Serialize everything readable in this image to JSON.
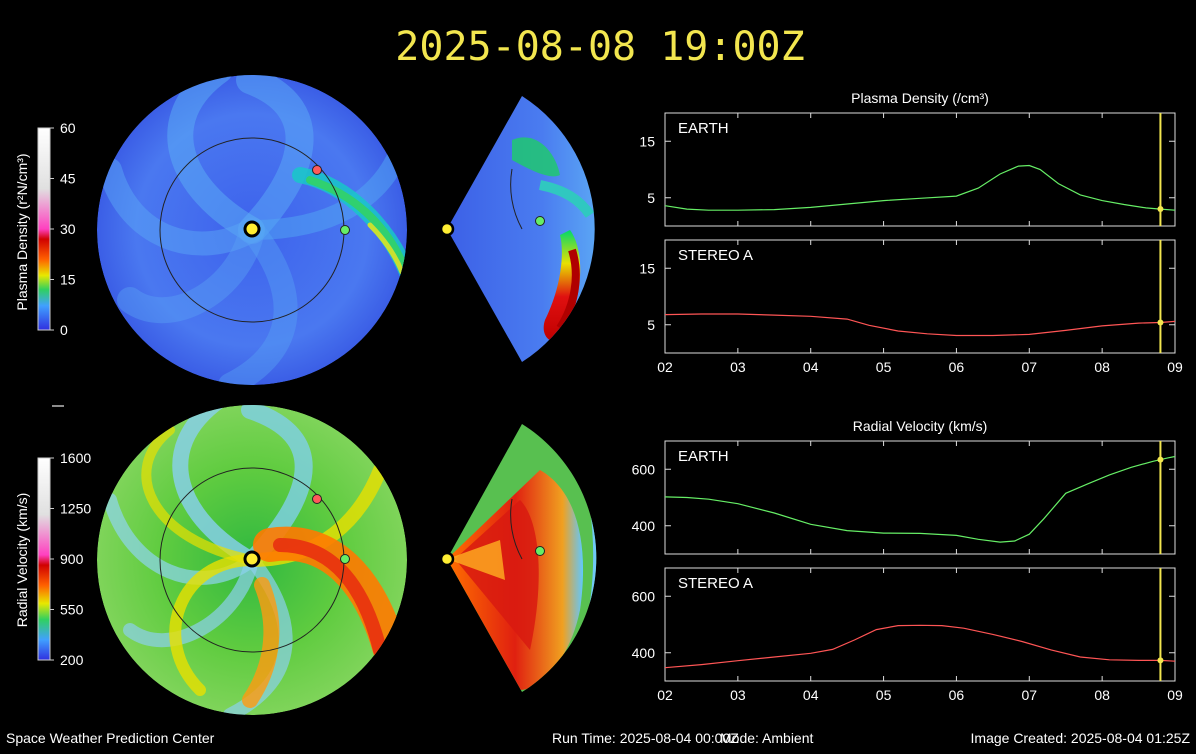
{
  "header": {
    "timestamp": "2025-08-08 19:00Z"
  },
  "colors": {
    "background": "#000000",
    "title": "#f2e64f",
    "earth": "#66ee66",
    "stereo_a": "#ff5555",
    "time_marker": "#f2e64f",
    "sun": "#ffee33"
  },
  "density_colorbar": {
    "label": "Plasma Density (r²N/cm³)",
    "ticks": [
      "0",
      "15",
      "30",
      "45",
      "60"
    ],
    "range": [
      0,
      60
    ]
  },
  "velocity_colorbar": {
    "label": "Radial Velocity (km/s)",
    "ticks": [
      "200",
      "550",
      "900",
      "1250",
      "1600"
    ],
    "range": [
      200,
      1600
    ]
  },
  "chart_data": [
    {
      "type": "line",
      "title": "Plasma Density (/cm³)",
      "panel": "EARTH",
      "x_ticks": [
        "02",
        "03",
        "04",
        "05",
        "06",
        "07",
        "08",
        "09"
      ],
      "xlim": [
        2,
        9
      ],
      "ylim": [
        0,
        20
      ],
      "y_ticks": [
        5,
        15
      ],
      "marker_x": 8.8,
      "series": [
        {
          "x": [
            2.0,
            2.3,
            2.6,
            3.0,
            3.5,
            4.0,
            4.5,
            5.0,
            5.5,
            6.0,
            6.3,
            6.6,
            6.85,
            7.0,
            7.15,
            7.4,
            7.7,
            8.0,
            8.3,
            8.6,
            8.8,
            9.0
          ],
          "values": [
            3.6,
            3.0,
            2.8,
            2.8,
            2.9,
            3.3,
            3.9,
            4.5,
            4.9,
            5.3,
            6.7,
            9.2,
            10.6,
            10.7,
            10.0,
            7.5,
            5.5,
            4.5,
            3.8,
            3.2,
            3.0,
            2.8
          ]
        }
      ]
    },
    {
      "type": "line",
      "panel": "STEREO A",
      "x_ticks": [
        "02",
        "03",
        "04",
        "05",
        "06",
        "07",
        "08",
        "09"
      ],
      "xlim": [
        2,
        9
      ],
      "ylim": [
        0,
        20
      ],
      "y_ticks": [
        5,
        15
      ],
      "marker_x": 8.8,
      "series": [
        {
          "x": [
            2.0,
            2.5,
            3.0,
            3.5,
            4.0,
            4.5,
            4.8,
            5.2,
            5.6,
            6.0,
            6.5,
            7.0,
            7.5,
            8.0,
            8.5,
            8.8,
            9.0
          ],
          "values": [
            6.8,
            6.9,
            6.9,
            6.7,
            6.5,
            6.0,
            4.9,
            3.9,
            3.4,
            3.1,
            3.1,
            3.3,
            4.0,
            4.8,
            5.3,
            5.4,
            5.6
          ]
        }
      ]
    },
    {
      "type": "line",
      "title": "Radial Velocity (km/s)",
      "panel": "EARTH",
      "x_ticks": [
        "02",
        "03",
        "04",
        "05",
        "06",
        "07",
        "08",
        "09"
      ],
      "xlim": [
        2,
        9
      ],
      "ylim": [
        300,
        700
      ],
      "y_ticks": [
        400,
        600
      ],
      "marker_x": 8.8,
      "series": [
        {
          "x": [
            2.0,
            2.3,
            2.6,
            3.0,
            3.5,
            4.0,
            4.5,
            5.0,
            5.5,
            6.0,
            6.3,
            6.6,
            6.8,
            7.0,
            7.2,
            7.5,
            7.8,
            8.1,
            8.4,
            8.7,
            8.9,
            9.0
          ],
          "values": [
            502,
            500,
            494,
            478,
            445,
            405,
            383,
            374,
            373,
            366,
            352,
            342,
            346,
            370,
            425,
            515,
            548,
            580,
            607,
            628,
            640,
            645
          ]
        }
      ]
    },
    {
      "type": "line",
      "panel": "STEREO A",
      "x_ticks": [
        "02",
        "03",
        "04",
        "05",
        "06",
        "07",
        "08",
        "09"
      ],
      "xlim": [
        2,
        9
      ],
      "ylim": [
        300,
        700
      ],
      "y_ticks": [
        400,
        600
      ],
      "marker_x": 8.8,
      "series": [
        {
          "x": [
            2.0,
            2.5,
            3.0,
            3.5,
            4.0,
            4.3,
            4.6,
            4.9,
            5.2,
            5.5,
            5.8,
            6.1,
            6.5,
            6.9,
            7.3,
            7.7,
            8.1,
            8.5,
            8.8,
            9.0
          ],
          "values": [
            347,
            358,
            372,
            385,
            398,
            412,
            445,
            482,
            496,
            497,
            496,
            487,
            465,
            440,
            410,
            385,
            375,
            373,
            373,
            370
          ]
        }
      ]
    }
  ],
  "footer": {
    "left": "Space Weather Prediction Center",
    "run_time": "Run Time: 2025-08-04 00:00Z",
    "mode": "Mode: Ambient",
    "created": "Image Created: 2025-08-04 01:25Z"
  }
}
